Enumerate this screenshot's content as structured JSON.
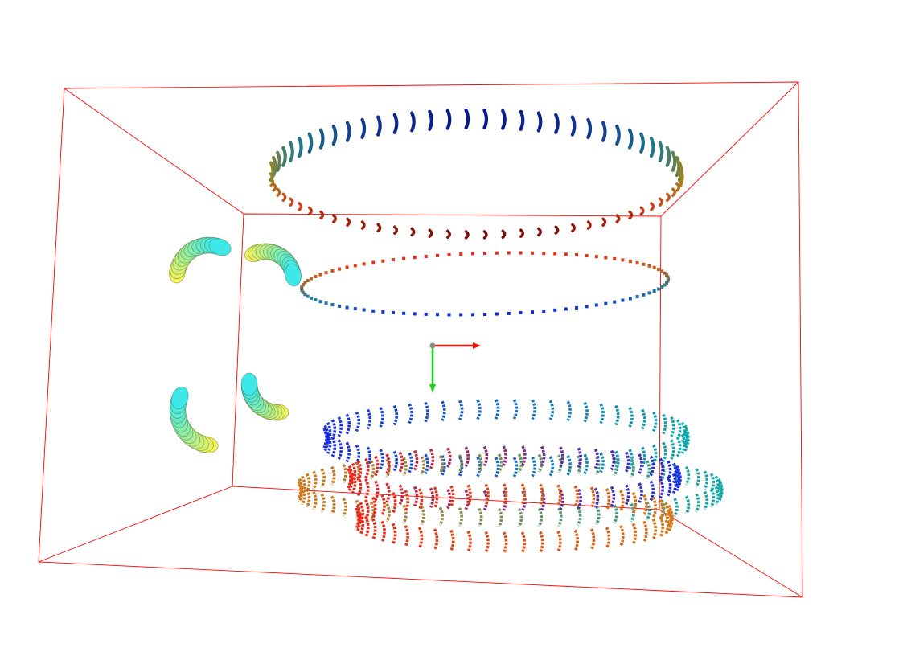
{
  "viewer": {
    "background": "#ffffff",
    "bounding_box_color": "#ff0000",
    "axes": {
      "x_color": "#e8160c",
      "y_color": "#1fcf1f",
      "origin_color": "#8a8a8a"
    },
    "objects": [
      {
        "name": "upper-coil-ring",
        "kind": "ring of coil segments",
        "colormap": [
          "#7a0b06",
          "#d2401a",
          "#a5861a",
          "#1f7a8a",
          "#0a1a8a"
        ]
      },
      {
        "name": "middle-dotted-ring",
        "kind": "dotted ring",
        "colormap": [
          "#e8281a",
          "#c56018",
          "#1f7fa0",
          "#0a26d8"
        ]
      },
      {
        "name": "corner-elbow-pieces",
        "count": 4,
        "colormap": [
          "#f2f25a",
          "#3ee8e8"
        ]
      },
      {
        "name": "lower-torus-structure",
        "kind": "stacked coil rings",
        "colormap": [
          "#1a2ee0",
          "#e8281a",
          "#12a8a8",
          "#d2781a"
        ]
      }
    ]
  }
}
